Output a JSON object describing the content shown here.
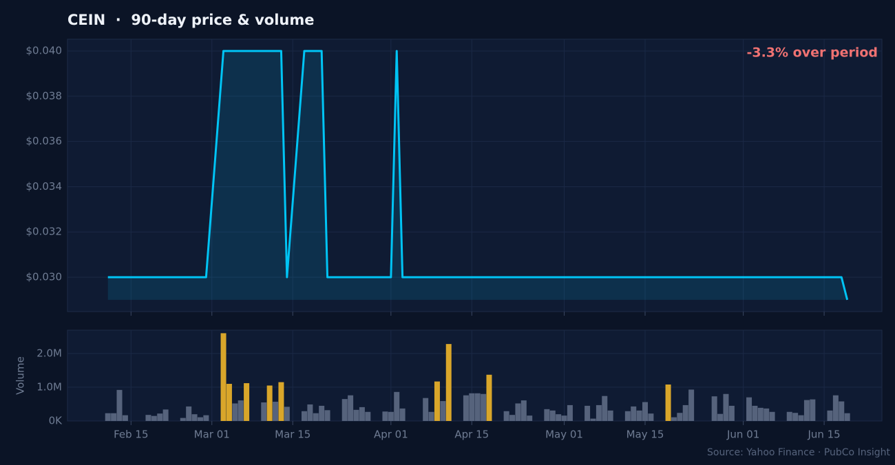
{
  "chart_data": [
    {
      "type": "line",
      "title": "CEIN  ·  90-day price & volume",
      "annotation": "-3.3% over period",
      "x": [
        "Feb 11",
        "Feb 12",
        "Feb 13",
        "Feb 14",
        "Feb 17",
        "Feb 18",
        "Feb 19",
        "Feb 20",
        "Feb 21",
        "Feb 24",
        "Feb 25",
        "Feb 26",
        "Feb 27",
        "Feb 28",
        "Mar 03",
        "Mar 04",
        "Mar 05",
        "Mar 06",
        "Mar 07",
        "Mar 10",
        "Mar 11",
        "Mar 12",
        "Mar 13",
        "Mar 14",
        "Mar 17",
        "Mar 18",
        "Mar 19",
        "Mar 20",
        "Mar 21",
        "Mar 24",
        "Mar 25",
        "Mar 26",
        "Mar 27",
        "Mar 28",
        "Mar 31",
        "Apr 01",
        "Apr 02",
        "Apr 03",
        "Apr 04",
        "Apr 07",
        "Apr 08",
        "Apr 09",
        "Apr 10",
        "Apr 11",
        "Apr 14",
        "Apr 15",
        "Apr 16",
        "Apr 17",
        "Apr 18",
        "Apr 21",
        "Apr 22",
        "Apr 23",
        "Apr 24",
        "Apr 25",
        "Apr 28",
        "Apr 29",
        "Apr 30",
        "May 01",
        "May 02",
        "May 05",
        "May 06",
        "May 07",
        "May 08",
        "May 09",
        "May 12",
        "May 13",
        "May 14",
        "May 15",
        "May 16",
        "May 19",
        "May 20",
        "May 21",
        "May 22",
        "May 23",
        "May 26",
        "May 27",
        "May 28",
        "May 29",
        "May 30",
        "Jun 02",
        "Jun 03",
        "Jun 04",
        "Jun 05",
        "Jun 06",
        "Jun 09",
        "Jun 10",
        "Jun 11",
        "Jun 12",
        "Jun 13",
        "Jun 16",
        "Jun 17",
        "Jun 18",
        "Jun 19"
      ],
      "values": [
        0.03,
        0.03,
        0.03,
        0.03,
        0.03,
        0.03,
        0.03,
        0.03,
        0.03,
        0.03,
        0.03,
        0.03,
        0.03,
        0.03,
        0.04,
        0.04,
        0.04,
        0.04,
        0.04,
        0.04,
        0.04,
        0.04,
        0.04,
        0.03,
        0.04,
        0.04,
        0.04,
        0.04,
        0.03,
        0.03,
        0.03,
        0.03,
        0.03,
        0.03,
        0.03,
        0.03,
        0.04,
        0.03,
        0.03,
        0.03,
        0.03,
        0.03,
        0.03,
        0.03,
        0.03,
        0.03,
        0.03,
        0.03,
        0.03,
        0.03,
        0.03,
        0.03,
        0.03,
        0.03,
        0.03,
        0.03,
        0.03,
        0.03,
        0.03,
        0.03,
        0.03,
        0.03,
        0.03,
        0.03,
        0.03,
        0.03,
        0.03,
        0.03,
        0.03,
        0.03,
        0.03,
        0.03,
        0.03,
        0.03,
        0.03,
        0.03,
        0.03,
        0.03,
        0.03,
        0.03,
        0.03,
        0.03,
        0.03,
        0.03,
        0.03,
        0.03,
        0.03,
        0.03,
        0.03,
        0.03,
        0.03,
        0.03,
        0.029
      ],
      "color": "#00c4f5",
      "fill": true,
      "xlim": [
        "Feb 04",
        "Jun 25"
      ],
      "ylim": [
        0.02848,
        0.04052
      ],
      "yticks": [
        {
          "value": 0.03,
          "label": "$0.030"
        },
        {
          "value": 0.032,
          "label": "$0.032"
        },
        {
          "value": 0.034,
          "label": "$0.034"
        },
        {
          "value": 0.036,
          "label": "$0.036"
        },
        {
          "value": 0.038,
          "label": "$0.038"
        },
        {
          "value": 0.04,
          "label": "$0.040"
        }
      ],
      "grid": true
    },
    {
      "type": "bar",
      "y_label": "Volume",
      "x": [
        "Feb 11",
        "Feb 12",
        "Feb 13",
        "Feb 14",
        "Feb 17",
        "Feb 18",
        "Feb 19",
        "Feb 20",
        "Feb 21",
        "Feb 24",
        "Feb 25",
        "Feb 26",
        "Feb 27",
        "Feb 28",
        "Mar 03",
        "Mar 04",
        "Mar 05",
        "Mar 06",
        "Mar 07",
        "Mar 10",
        "Mar 11",
        "Mar 12",
        "Mar 13",
        "Mar 14",
        "Mar 17",
        "Mar 18",
        "Mar 19",
        "Mar 20",
        "Mar 21",
        "Mar 24",
        "Mar 25",
        "Mar 26",
        "Mar 27",
        "Mar 28",
        "Mar 31",
        "Apr 01",
        "Apr 02",
        "Apr 03",
        "Apr 04",
        "Apr 07",
        "Apr 08",
        "Apr 09",
        "Apr 10",
        "Apr 11",
        "Apr 14",
        "Apr 15",
        "Apr 16",
        "Apr 17",
        "Apr 18",
        "Apr 21",
        "Apr 22",
        "Apr 23",
        "Apr 24",
        "Apr 25",
        "Apr 28",
        "Apr 29",
        "Apr 30",
        "May 01",
        "May 02",
        "May 05",
        "May 06",
        "May 07",
        "May 08",
        "May 09",
        "May 12",
        "May 13",
        "May 14",
        "May 15",
        "May 16",
        "May 19",
        "May 20",
        "May 21",
        "May 22",
        "May 23",
        "May 26",
        "May 27",
        "May 28",
        "May 29",
        "May 30",
        "Jun 02",
        "Jun 03",
        "Jun 04",
        "Jun 05",
        "Jun 06",
        "Jun 09",
        "Jun 10",
        "Jun 11",
        "Jun 12",
        "Jun 13",
        "Jun 16",
        "Jun 17",
        "Jun 18",
        "Jun 19"
      ],
      "values": [
        230000,
        230000,
        920000,
        170000,
        0,
        180000,
        150000,
        220000,
        340000,
        90000,
        430000,
        200000,
        110000,
        170000,
        2600000,
        1100000,
        520000,
        610000,
        1120000,
        550000,
        1050000,
        570000,
        1150000,
        420000,
        290000,
        490000,
        230000,
        450000,
        320000,
        650000,
        760000,
        330000,
        410000,
        270000,
        280000,
        270000,
        860000,
        370000,
        0,
        680000,
        270000,
        1170000,
        590000,
        2280000,
        760000,
        820000,
        820000,
        800000,
        1370000,
        290000,
        180000,
        520000,
        610000,
        160000,
        350000,
        310000,
        200000,
        160000,
        470000,
        450000,
        70000,
        470000,
        740000,
        310000,
        290000,
        430000,
        310000,
        560000,
        220000,
        1080000,
        110000,
        240000,
        470000,
        930000,
        0,
        730000,
        210000,
        800000,
        450000,
        700000,
        450000,
        390000,
        370000,
        270000,
        270000,
        240000,
        170000,
        620000,
        640000,
        310000,
        760000,
        580000,
        230000
      ],
      "colors": [
        "#56637c",
        "#56637c",
        "#56637c",
        "#56637c",
        "#56637c",
        "#56637c",
        "#56637c",
        "#56637c",
        "#56637c",
        "#56637c",
        "#56637c",
        "#56637c",
        "#56637c",
        "#56637c",
        "#d9a62a",
        "#d9a62a",
        "#56637c",
        "#56637c",
        "#d9a62a",
        "#56637c",
        "#d9a62a",
        "#56637c",
        "#d9a62a",
        "#56637c",
        "#56637c",
        "#56637c",
        "#56637c",
        "#56637c",
        "#56637c",
        "#56637c",
        "#56637c",
        "#56637c",
        "#56637c",
        "#56637c",
        "#56637c",
        "#56637c",
        "#56637c",
        "#56637c",
        "#56637c",
        "#56637c",
        "#56637c",
        "#d9a62a",
        "#56637c",
        "#d9a62a",
        "#56637c",
        "#56637c",
        "#56637c",
        "#56637c",
        "#d9a62a",
        "#56637c",
        "#56637c",
        "#56637c",
        "#56637c",
        "#56637c",
        "#56637c",
        "#56637c",
        "#56637c",
        "#56637c",
        "#56637c",
        "#56637c",
        "#56637c",
        "#56637c",
        "#56637c",
        "#56637c",
        "#56637c",
        "#56637c",
        "#56637c",
        "#56637c",
        "#56637c",
        "#d9a62a",
        "#56637c",
        "#56637c",
        "#56637c",
        "#56637c",
        "#56637c",
        "#56637c",
        "#56637c",
        "#56637c",
        "#56637c",
        "#56637c",
        "#56637c",
        "#56637c",
        "#56637c",
        "#56637c",
        "#56637c",
        "#56637c",
        "#56637c",
        "#56637c",
        "#56637c",
        "#56637c",
        "#56637c",
        "#56637c",
        "#56637c"
      ],
      "xlim": [
        "Feb 04",
        "Jun 25"
      ],
      "xticks": [
        "Feb 15",
        "Mar 01",
        "Mar 15",
        "Apr 01",
        "Apr 15",
        "May 01",
        "May 15",
        "Jun 01",
        "Jun 15"
      ],
      "ylim": [
        0,
        2690000
      ],
      "yticks": [
        {
          "value": 0,
          "label": "0K"
        },
        {
          "value": 1000000,
          "label": "1.0M"
        },
        {
          "value": 2000000,
          "label": "2.0M"
        }
      ],
      "grid": true
    }
  ],
  "source": "Source: Yahoo Finance · PubCo Insight"
}
